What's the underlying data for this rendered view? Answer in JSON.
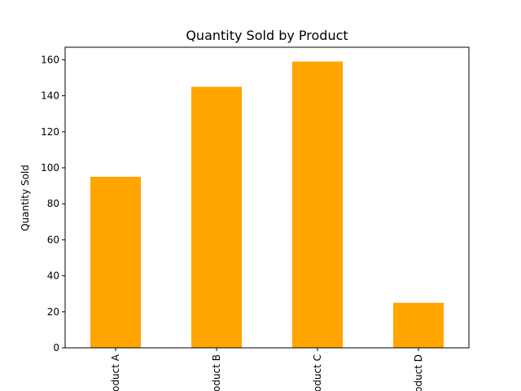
{
  "chart_data": {
    "type": "bar",
    "title": "Quantity Sold by Product",
    "xlabel": "",
    "ylabel": "Quantity Sold",
    "categories": [
      "Product A",
      "Product B",
      "Product C",
      "Product D"
    ],
    "values": [
      95,
      145,
      159,
      25
    ],
    "ylim": [
      0,
      166.95
    ],
    "yticks": [
      0,
      20,
      40,
      60,
      80,
      100,
      120,
      140,
      160
    ],
    "bar_color": "#ffa500",
    "grid": false,
    "legend": "none"
  }
}
